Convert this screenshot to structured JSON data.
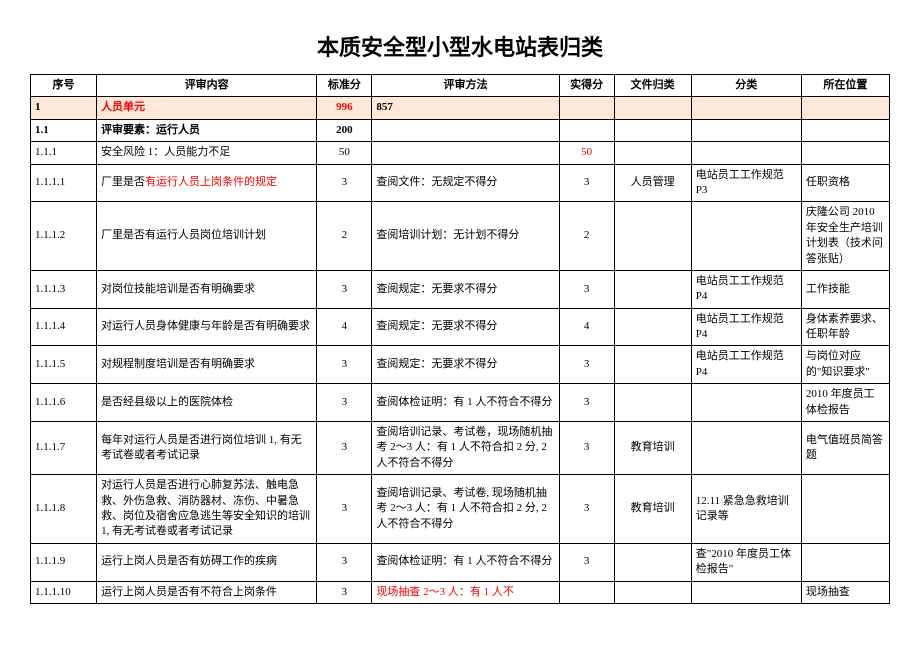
{
  "title": "本质安全型小型水电站表归类",
  "columns": [
    "序号",
    "评审内容",
    "标准分",
    "评审方法",
    "实得分",
    "文件归类",
    "分类",
    "所在位置"
  ],
  "colors": {
    "highlight": "#fde9d9",
    "red": "#ff0000"
  },
  "rows": [
    {
      "seq": "1",
      "content": "人员单元",
      "std": "996",
      "method": "857",
      "score": "",
      "file": "",
      "cat": "",
      "loc": "",
      "hl": true,
      "bold": true,
      "red_content": true
    },
    {
      "seq": "1.1",
      "content": "评审要素：运行人员",
      "std": "200",
      "method": "",
      "score": "",
      "file": "",
      "cat": "",
      "loc": "",
      "bold": true
    },
    {
      "seq": "1.1.1",
      "content": "安全风险 1：人员能力不足",
      "std": "50",
      "method": "",
      "score": "50",
      "file": "",
      "cat": "",
      "loc": "",
      "red_score": true
    },
    {
      "seq": "1.1.1.1",
      "content_pre": "厂里是否",
      "content_red": "有运行人员上岗条件的规定",
      "std": "3",
      "method": "查阅文件：无规定不得分",
      "score": "3",
      "file": "人员管理",
      "cat": "电站员工工作规范 P3",
      "loc": "任职资格"
    },
    {
      "seq": "1.1.1.2",
      "content": "厂里是否有运行人员岗位培训计划",
      "std": "2",
      "method": "查阅培训计划：无计划不得分",
      "score": "2",
      "file": "",
      "cat": "",
      "loc": "庆隆公司 2010 年安全生产培训计划表（技术问答张贴）"
    },
    {
      "seq": "1.1.1.3",
      "content": "对岗位技能培训是否有明确要求",
      "std": "3",
      "method": "查阅规定：无要求不得分",
      "score": "3",
      "file": "",
      "cat": "电站员工工作规范 P4",
      "loc": "工作技能"
    },
    {
      "seq": "1.1.1.4",
      "content": "对运行人员身体健康与年龄是否有明确要求",
      "std": "4",
      "method": "查阅规定：无要求不得分",
      "score": "4",
      "file": "",
      "cat": "电站员工工作规范 P4",
      "loc": "身体素养要求、任职年龄"
    },
    {
      "seq": "1.1.1.5",
      "content": "对规程制度培训是否有明确要求",
      "std": "3",
      "method": "查阅规定：无要求不得分",
      "score": "3",
      "file": "",
      "cat": "电站员工工作规范 P4",
      "loc": "与岗位对应的\"知识要求\""
    },
    {
      "seq": "1.1.1.6",
      "content": "是否经县级以上的医院体检",
      "std": "3",
      "method": "查阅体检证明：有 1 人不符合不得分",
      "score": "3",
      "file": "",
      "cat": "",
      "loc": "2010 年度员工体检报告"
    },
    {
      "seq": "1.1.1.7",
      "content": "每年对运行人员是否进行岗位培训 1, 有无考试卷或者考试记录",
      "std": "3",
      "method": "查阅培训记录、考试卷，现场随机抽考 2～3 人：有 1 人不符合扣 2 分, 2 人不符合不得分",
      "score": "3",
      "file": "教育培训",
      "cat": "",
      "loc": "电气值班员简答题"
    },
    {
      "seq": "1.1.1.8",
      "content": "对运行人员是否进行心肺复苏法、触电急救、外伤急救、消防器材、冻伤、中暑急救、岗位及宿舍应急逃生等安全知识的培训 1, 有无考试卷或者考试记录",
      "std": "3",
      "method": "查阅培训记录、考试卷, 现场随机抽考 2～3 人：有 1 人不符合扣 2 分, 2 人不符合不得分",
      "score": "3",
      "file": "教育培训",
      "cat": "12.11 紧急急救培训记录等",
      "loc": ""
    },
    {
      "seq": "1.1.1.9",
      "content": "运行上岗人员是否有妨碍工作的疾病",
      "std": "3",
      "method": "查阅体检证明：有 1 人不符合不得分",
      "score": "3",
      "file": "",
      "cat": "查\"2010 年度员工体检报告\"",
      "loc": ""
    },
    {
      "seq": "1.1.1.10",
      "content": "运行上岗人员是否有不符合上岗条件",
      "std": "3",
      "method": "现场抽查 2～3 人：有 1 人不",
      "score": "",
      "file": "",
      "cat": "",
      "loc": "现场抽查",
      "red_method": true
    }
  ]
}
